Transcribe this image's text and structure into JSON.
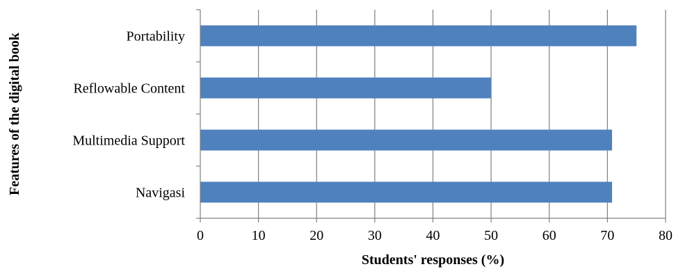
{
  "chart_data": {
    "type": "bar",
    "orientation": "horizontal",
    "categories": [
      "Portability",
      "Reflowable Content",
      "Multimedia Support",
      "Navigasi"
    ],
    "values": [
      75,
      50,
      70.8,
      70.8
    ],
    "xlabel": "Students' responses (%)",
    "ylabel": "Features of the digital book",
    "xlim": [
      0,
      80
    ],
    "xticks": [
      "0",
      "10",
      "20",
      "30",
      "40",
      "50",
      "60",
      "70",
      "80"
    ],
    "grid": "vertical",
    "legend": "none",
    "bar_color": "#4f81bd",
    "grid_color": "#808080"
  }
}
